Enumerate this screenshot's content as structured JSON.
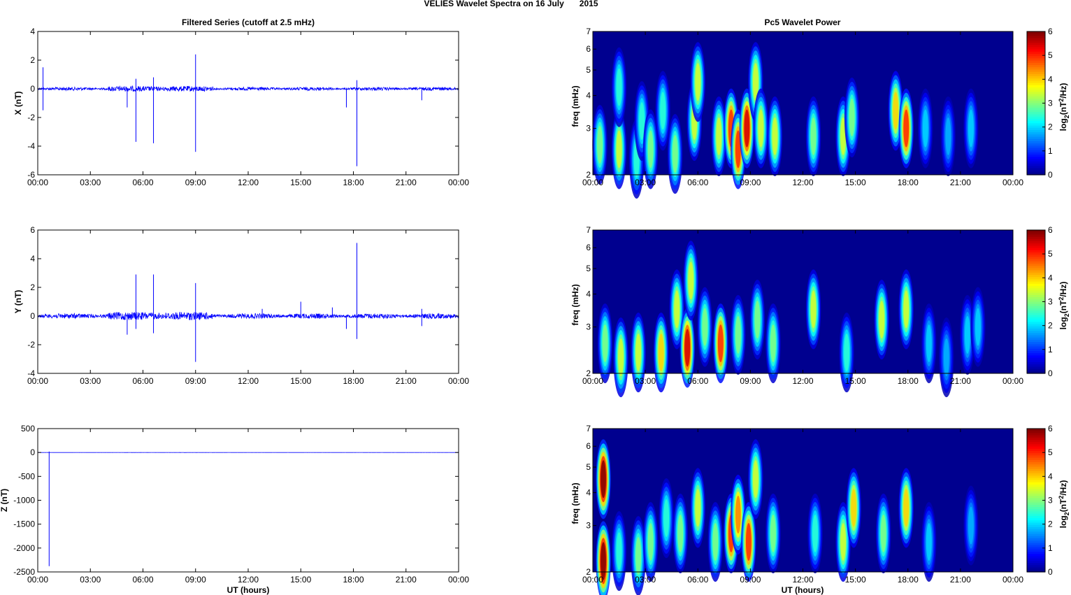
{
  "suptitle": {
    "part1": "VELIES Wavelet Spectra on 16 July",
    "part2": "2015"
  },
  "left_title": "Filtered Series (cutoff at 2.5 mHz)",
  "right_title": "Pc5 Wavelet Power",
  "xlabel": "UT (hours)",
  "x_ticks": [
    "00:00",
    "03:00",
    "06:00",
    "09:00",
    "12:00",
    "15:00",
    "18:00",
    "21:00",
    "00:00"
  ],
  "freq_label": "freq (mHz)",
  "colorbar_label": {
    "pre": "log",
    "sub": "2",
    "mid": "(nT",
    "sup": "2",
    "post": "/Hz)"
  },
  "colors": {
    "trace": "#0000ff",
    "spectrogram_background": "#00008f"
  },
  "chart_data": [
    {
      "type": "line",
      "name": "filtered-x",
      "ylabel": "X (nT)",
      "ylim": [
        -6,
        4
      ],
      "y_ticks": [
        "4",
        "2",
        "0",
        "-2",
        "-4",
        "-6"
      ],
      "y_values": [
        4,
        2,
        0,
        -2,
        -4,
        -6
      ],
      "xlim_hours": [
        0,
        24
      ],
      "noise_amplitude": 0.12,
      "spikes": [
        {
          "t": 0.3,
          "y": 1.5
        },
        {
          "t": 0.3,
          "y": -1.5
        },
        {
          "t": 5.1,
          "y": -1.3
        },
        {
          "t": 5.6,
          "y": -3.7
        },
        {
          "t": 5.6,
          "y": 0.7
        },
        {
          "t": 6.6,
          "y": -3.8
        },
        {
          "t": 6.6,
          "y": 0.8
        },
        {
          "t": 9.0,
          "y": 2.4
        },
        {
          "t": 9.0,
          "y": -4.4
        },
        {
          "t": 17.6,
          "y": -1.3
        },
        {
          "t": 18.2,
          "y": -5.4
        },
        {
          "t": 18.2,
          "y": -3.0
        },
        {
          "t": 18.2,
          "y": 0.6
        },
        {
          "t": 21.9,
          "y": -0.8
        }
      ]
    },
    {
      "type": "line",
      "name": "filtered-y",
      "ylabel": "Y (nT)",
      "ylim": [
        -4,
        6
      ],
      "y_ticks": [
        "6",
        "4",
        "2",
        "0",
        "-2",
        "-4"
      ],
      "y_values": [
        6,
        4,
        2,
        0,
        -2,
        -4
      ],
      "xlim_hours": [
        0,
        24
      ],
      "noise_amplitude": 0.18,
      "spikes": [
        {
          "t": 5.1,
          "y": -1.3
        },
        {
          "t": 5.6,
          "y": 2.9
        },
        {
          "t": 5.6,
          "y": -0.9
        },
        {
          "t": 6.6,
          "y": 2.9
        },
        {
          "t": 6.6,
          "y": -1.2
        },
        {
          "t": 9.0,
          "y": 2.3
        },
        {
          "t": 9.0,
          "y": -3.2
        },
        {
          "t": 12.8,
          "y": 0.5
        },
        {
          "t": 15.0,
          "y": 1.0
        },
        {
          "t": 16.8,
          "y": 0.6
        },
        {
          "t": 17.6,
          "y": -0.9
        },
        {
          "t": 18.2,
          "y": 5.1
        },
        {
          "t": 18.2,
          "y": -1.6
        },
        {
          "t": 18.2,
          "y": 1.8
        },
        {
          "t": 21.9,
          "y": 0.5
        },
        {
          "t": 21.9,
          "y": -0.7
        }
      ]
    },
    {
      "type": "line",
      "name": "filtered-z",
      "ylabel": "Z (nT)",
      "ylim": [
        -2500,
        500
      ],
      "y_ticks": [
        "500",
        "0",
        "-500",
        "-1000",
        "-1500",
        "-2000",
        "-2500"
      ],
      "y_values": [
        500,
        0,
        -500,
        -1000,
        -1500,
        -2000,
        -2500
      ],
      "xlim_hours": [
        0,
        24
      ],
      "noise_amplitude": 1,
      "spikes": [
        {
          "t": 0.65,
          "y": -2380
        },
        {
          "t": 0.65,
          "y": 20
        }
      ]
    },
    {
      "type": "heatmap",
      "name": "wavelet-x",
      "ylabel": "freq (mHz)",
      "ylim_mHz": [
        2,
        7
      ],
      "yscale": "log",
      "y_ticks": [
        "7",
        "6",
        "5",
        "4",
        "3",
        "2"
      ],
      "y_values": [
        7,
        6,
        5,
        4,
        3,
        2
      ],
      "xlim_hours": [
        0,
        24
      ],
      "colorbar": {
        "ticks": [
          "6",
          "5",
          "4",
          "3",
          "2",
          "1",
          "0"
        ],
        "clim": [
          0,
          6
        ],
        "colormap": "jet"
      },
      "blobs": [
        {
          "t": 0.4,
          "f": 2.6,
          "p": 3.0
        },
        {
          "t": 1.5,
          "f": 2.5,
          "p": 3.5
        },
        {
          "t": 1.5,
          "f": 4.3,
          "p": 2.5
        },
        {
          "t": 2.5,
          "f": 2.3,
          "p": 2.5
        },
        {
          "t": 2.8,
          "f": 3.2,
          "p": 2.5
        },
        {
          "t": 3.3,
          "f": 2.5,
          "p": 3.0
        },
        {
          "t": 4.0,
          "f": 3.5,
          "p": 2.5
        },
        {
          "t": 4.7,
          "f": 2.4,
          "p": 3.0
        },
        {
          "t": 5.8,
          "f": 3.2,
          "p": 3.5
        },
        {
          "t": 6.0,
          "f": 4.5,
          "p": 3.5
        },
        {
          "t": 7.2,
          "f": 2.8,
          "p": 3.5
        },
        {
          "t": 7.9,
          "f": 3.0,
          "p": 5.0
        },
        {
          "t": 8.3,
          "f": 2.5,
          "p": 5.0
        },
        {
          "t": 8.8,
          "f": 3.0,
          "p": 5.5
        },
        {
          "t": 9.3,
          "f": 4.5,
          "p": 3.5
        },
        {
          "t": 9.6,
          "f": 3.0,
          "p": 3.5
        },
        {
          "t": 10.4,
          "f": 2.8,
          "p": 3.5
        },
        {
          "t": 12.6,
          "f": 2.8,
          "p": 3.0
        },
        {
          "t": 14.3,
          "f": 2.8,
          "p": 3.5
        },
        {
          "t": 14.8,
          "f": 3.3,
          "p": 3.0
        },
        {
          "t": 17.3,
          "f": 3.5,
          "p": 4.0
        },
        {
          "t": 17.9,
          "f": 3.0,
          "p": 5.0
        },
        {
          "t": 19.0,
          "f": 3.0,
          "p": 2.0
        },
        {
          "t": 20.3,
          "f": 2.8,
          "p": 1.8
        },
        {
          "t": 21.6,
          "f": 3.0,
          "p": 2.0
        }
      ]
    },
    {
      "type": "heatmap",
      "name": "wavelet-y",
      "ylabel": "freq (mHz)",
      "ylim_mHz": [
        2,
        7
      ],
      "yscale": "log",
      "y_ticks": [
        "7",
        "6",
        "5",
        "4",
        "3",
        "2"
      ],
      "y_values": [
        7,
        6,
        5,
        4,
        3,
        2
      ],
      "xlim_hours": [
        0,
        24
      ],
      "colorbar": {
        "ticks": [
          "6",
          "5",
          "4",
          "3",
          "2",
          "1",
          "0"
        ],
        "clim": [
          0,
          6
        ],
        "colormap": "jet"
      },
      "blobs": [
        {
          "t": 0.7,
          "f": 2.6,
          "p": 3.0
        },
        {
          "t": 1.6,
          "f": 2.3,
          "p": 3.5
        },
        {
          "t": 2.6,
          "f": 2.4,
          "p": 3.5
        },
        {
          "t": 3.9,
          "f": 2.4,
          "p": 4.0
        },
        {
          "t": 4.8,
          "f": 3.5,
          "p": 3.5
        },
        {
          "t": 5.4,
          "f": 2.5,
          "p": 5.5
        },
        {
          "t": 5.6,
          "f": 4.5,
          "p": 3.5
        },
        {
          "t": 6.4,
          "f": 3.0,
          "p": 3.0
        },
        {
          "t": 7.3,
          "f": 2.6,
          "p": 5.0
        },
        {
          "t": 8.3,
          "f": 2.8,
          "p": 3.0
        },
        {
          "t": 9.4,
          "f": 3.2,
          "p": 3.0
        },
        {
          "t": 10.3,
          "f": 2.6,
          "p": 3.0
        },
        {
          "t": 12.6,
          "f": 3.5,
          "p": 3.5
        },
        {
          "t": 14.5,
          "f": 2.4,
          "p": 2.5
        },
        {
          "t": 16.5,
          "f": 3.2,
          "p": 3.5
        },
        {
          "t": 17.9,
          "f": 3.5,
          "p": 3.5
        },
        {
          "t": 19.2,
          "f": 2.6,
          "p": 2.0
        },
        {
          "t": 20.2,
          "f": 2.3,
          "p": 1.8
        },
        {
          "t": 21.4,
          "f": 2.8,
          "p": 2.0
        },
        {
          "t": 22.0,
          "f": 3.0,
          "p": 2.0
        }
      ]
    },
    {
      "type": "heatmap",
      "name": "wavelet-z",
      "ylabel": "freq (mHz)",
      "ylim_mHz": [
        2,
        7
      ],
      "yscale": "log",
      "y_ticks": [
        "7",
        "6",
        "5",
        "4",
        "3",
        "2"
      ],
      "y_values": [
        7,
        6,
        5,
        4,
        3,
        2
      ],
      "xlim_hours": [
        0,
        24
      ],
      "colorbar": {
        "ticks": [
          "6",
          "5",
          "4",
          "3",
          "2",
          "1",
          "0"
        ],
        "clim": [
          0,
          6
        ],
        "colormap": "jet"
      },
      "blobs": [
        {
          "t": 0.6,
          "f": 2.2,
          "p": 6.0
        },
        {
          "t": 0.6,
          "f": 4.5,
          "p": 6.0
        },
        {
          "t": 1.5,
          "f": 2.4,
          "p": 2.5
        },
        {
          "t": 2.6,
          "f": 2.3,
          "p": 3.0
        },
        {
          "t": 3.3,
          "f": 2.6,
          "p": 3.0
        },
        {
          "t": 4.2,
          "f": 3.2,
          "p": 2.5
        },
        {
          "t": 5.0,
          "f": 2.8,
          "p": 3.0
        },
        {
          "t": 6.0,
          "f": 3.5,
          "p": 3.5
        },
        {
          "t": 7.0,
          "f": 2.6,
          "p": 3.0
        },
        {
          "t": 7.9,
          "f": 2.8,
          "p": 5.0
        },
        {
          "t": 8.3,
          "f": 3.3,
          "p": 4.5
        },
        {
          "t": 8.9,
          "f": 2.6,
          "p": 5.0
        },
        {
          "t": 9.3,
          "f": 4.5,
          "p": 3.5
        },
        {
          "t": 10.3,
          "f": 2.8,
          "p": 3.0
        },
        {
          "t": 12.7,
          "f": 2.8,
          "p": 2.5
        },
        {
          "t": 14.3,
          "f": 2.6,
          "p": 3.5
        },
        {
          "t": 14.9,
          "f": 3.5,
          "p": 4.0
        },
        {
          "t": 16.6,
          "f": 2.8,
          "p": 3.0
        },
        {
          "t": 17.9,
          "f": 3.5,
          "p": 4.0
        },
        {
          "t": 19.2,
          "f": 2.6,
          "p": 2.0
        },
        {
          "t": 21.6,
          "f": 3.0,
          "p": 1.8
        }
      ]
    }
  ]
}
